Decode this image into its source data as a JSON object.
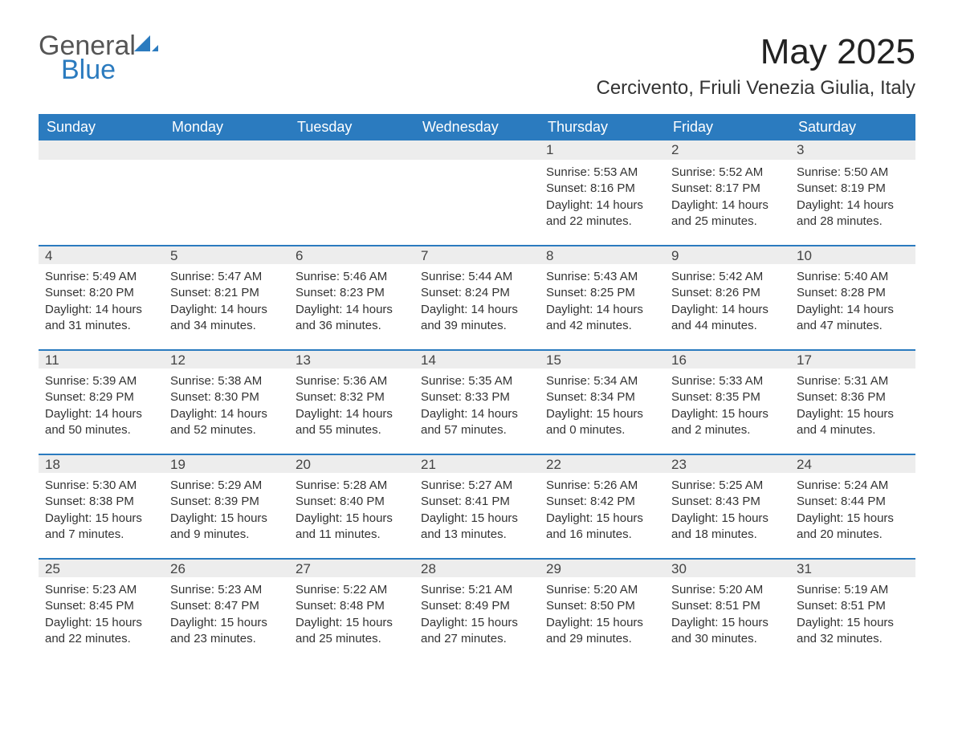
{
  "colors": {
    "header_bg": "#2b7bbf",
    "header_text": "#ffffff",
    "daynum_bg": "#ededed",
    "daynum_border_top": "#2b7bbf",
    "body_text": "#333333",
    "logo_general": "#555555",
    "logo_blue": "#2b7bbf",
    "page_bg": "#ffffff"
  },
  "typography": {
    "month_title_fontsize": 44,
    "location_fontsize": 24,
    "weekday_fontsize": 18,
    "daynum_fontsize": 17,
    "body_fontsize": 15,
    "logo_fontsize": 34
  },
  "logo": {
    "line1": "General",
    "line2": "Blue"
  },
  "title": "May 2025",
  "location": "Cercivento, Friuli Venezia Giulia, Italy",
  "weekdays": [
    "Sunday",
    "Monday",
    "Tuesday",
    "Wednesday",
    "Thursday",
    "Friday",
    "Saturday"
  ],
  "weeks": [
    [
      null,
      null,
      null,
      null,
      {
        "n": "1",
        "sunrise": "Sunrise: 5:53 AM",
        "sunset": "Sunset: 8:16 PM",
        "daylight": "Daylight: 14 hours and 22 minutes."
      },
      {
        "n": "2",
        "sunrise": "Sunrise: 5:52 AM",
        "sunset": "Sunset: 8:17 PM",
        "daylight": "Daylight: 14 hours and 25 minutes."
      },
      {
        "n": "3",
        "sunrise": "Sunrise: 5:50 AM",
        "sunset": "Sunset: 8:19 PM",
        "daylight": "Daylight: 14 hours and 28 minutes."
      }
    ],
    [
      {
        "n": "4",
        "sunrise": "Sunrise: 5:49 AM",
        "sunset": "Sunset: 8:20 PM",
        "daylight": "Daylight: 14 hours and 31 minutes."
      },
      {
        "n": "5",
        "sunrise": "Sunrise: 5:47 AM",
        "sunset": "Sunset: 8:21 PM",
        "daylight": "Daylight: 14 hours and 34 minutes."
      },
      {
        "n": "6",
        "sunrise": "Sunrise: 5:46 AM",
        "sunset": "Sunset: 8:23 PM",
        "daylight": "Daylight: 14 hours and 36 minutes."
      },
      {
        "n": "7",
        "sunrise": "Sunrise: 5:44 AM",
        "sunset": "Sunset: 8:24 PM",
        "daylight": "Daylight: 14 hours and 39 minutes."
      },
      {
        "n": "8",
        "sunrise": "Sunrise: 5:43 AM",
        "sunset": "Sunset: 8:25 PM",
        "daylight": "Daylight: 14 hours and 42 minutes."
      },
      {
        "n": "9",
        "sunrise": "Sunrise: 5:42 AM",
        "sunset": "Sunset: 8:26 PM",
        "daylight": "Daylight: 14 hours and 44 minutes."
      },
      {
        "n": "10",
        "sunrise": "Sunrise: 5:40 AM",
        "sunset": "Sunset: 8:28 PM",
        "daylight": "Daylight: 14 hours and 47 minutes."
      }
    ],
    [
      {
        "n": "11",
        "sunrise": "Sunrise: 5:39 AM",
        "sunset": "Sunset: 8:29 PM",
        "daylight": "Daylight: 14 hours and 50 minutes."
      },
      {
        "n": "12",
        "sunrise": "Sunrise: 5:38 AM",
        "sunset": "Sunset: 8:30 PM",
        "daylight": "Daylight: 14 hours and 52 minutes."
      },
      {
        "n": "13",
        "sunrise": "Sunrise: 5:36 AM",
        "sunset": "Sunset: 8:32 PM",
        "daylight": "Daylight: 14 hours and 55 minutes."
      },
      {
        "n": "14",
        "sunrise": "Sunrise: 5:35 AM",
        "sunset": "Sunset: 8:33 PM",
        "daylight": "Daylight: 14 hours and 57 minutes."
      },
      {
        "n": "15",
        "sunrise": "Sunrise: 5:34 AM",
        "sunset": "Sunset: 8:34 PM",
        "daylight": "Daylight: 15 hours and 0 minutes."
      },
      {
        "n": "16",
        "sunrise": "Sunrise: 5:33 AM",
        "sunset": "Sunset: 8:35 PM",
        "daylight": "Daylight: 15 hours and 2 minutes."
      },
      {
        "n": "17",
        "sunrise": "Sunrise: 5:31 AM",
        "sunset": "Sunset: 8:36 PM",
        "daylight": "Daylight: 15 hours and 4 minutes."
      }
    ],
    [
      {
        "n": "18",
        "sunrise": "Sunrise: 5:30 AM",
        "sunset": "Sunset: 8:38 PM",
        "daylight": "Daylight: 15 hours and 7 minutes."
      },
      {
        "n": "19",
        "sunrise": "Sunrise: 5:29 AM",
        "sunset": "Sunset: 8:39 PM",
        "daylight": "Daylight: 15 hours and 9 minutes."
      },
      {
        "n": "20",
        "sunrise": "Sunrise: 5:28 AM",
        "sunset": "Sunset: 8:40 PM",
        "daylight": "Daylight: 15 hours and 11 minutes."
      },
      {
        "n": "21",
        "sunrise": "Sunrise: 5:27 AM",
        "sunset": "Sunset: 8:41 PM",
        "daylight": "Daylight: 15 hours and 13 minutes."
      },
      {
        "n": "22",
        "sunrise": "Sunrise: 5:26 AM",
        "sunset": "Sunset: 8:42 PM",
        "daylight": "Daylight: 15 hours and 16 minutes."
      },
      {
        "n": "23",
        "sunrise": "Sunrise: 5:25 AM",
        "sunset": "Sunset: 8:43 PM",
        "daylight": "Daylight: 15 hours and 18 minutes."
      },
      {
        "n": "24",
        "sunrise": "Sunrise: 5:24 AM",
        "sunset": "Sunset: 8:44 PM",
        "daylight": "Daylight: 15 hours and 20 minutes."
      }
    ],
    [
      {
        "n": "25",
        "sunrise": "Sunrise: 5:23 AM",
        "sunset": "Sunset: 8:45 PM",
        "daylight": "Daylight: 15 hours and 22 minutes."
      },
      {
        "n": "26",
        "sunrise": "Sunrise: 5:23 AM",
        "sunset": "Sunset: 8:47 PM",
        "daylight": "Daylight: 15 hours and 23 minutes."
      },
      {
        "n": "27",
        "sunrise": "Sunrise: 5:22 AM",
        "sunset": "Sunset: 8:48 PM",
        "daylight": "Daylight: 15 hours and 25 minutes."
      },
      {
        "n": "28",
        "sunrise": "Sunrise: 5:21 AM",
        "sunset": "Sunset: 8:49 PM",
        "daylight": "Daylight: 15 hours and 27 minutes."
      },
      {
        "n": "29",
        "sunrise": "Sunrise: 5:20 AM",
        "sunset": "Sunset: 8:50 PM",
        "daylight": "Daylight: 15 hours and 29 minutes."
      },
      {
        "n": "30",
        "sunrise": "Sunrise: 5:20 AM",
        "sunset": "Sunset: 8:51 PM",
        "daylight": "Daylight: 15 hours and 30 minutes."
      },
      {
        "n": "31",
        "sunrise": "Sunrise: 5:19 AM",
        "sunset": "Sunset: 8:51 PM",
        "daylight": "Daylight: 15 hours and 32 minutes."
      }
    ]
  ]
}
